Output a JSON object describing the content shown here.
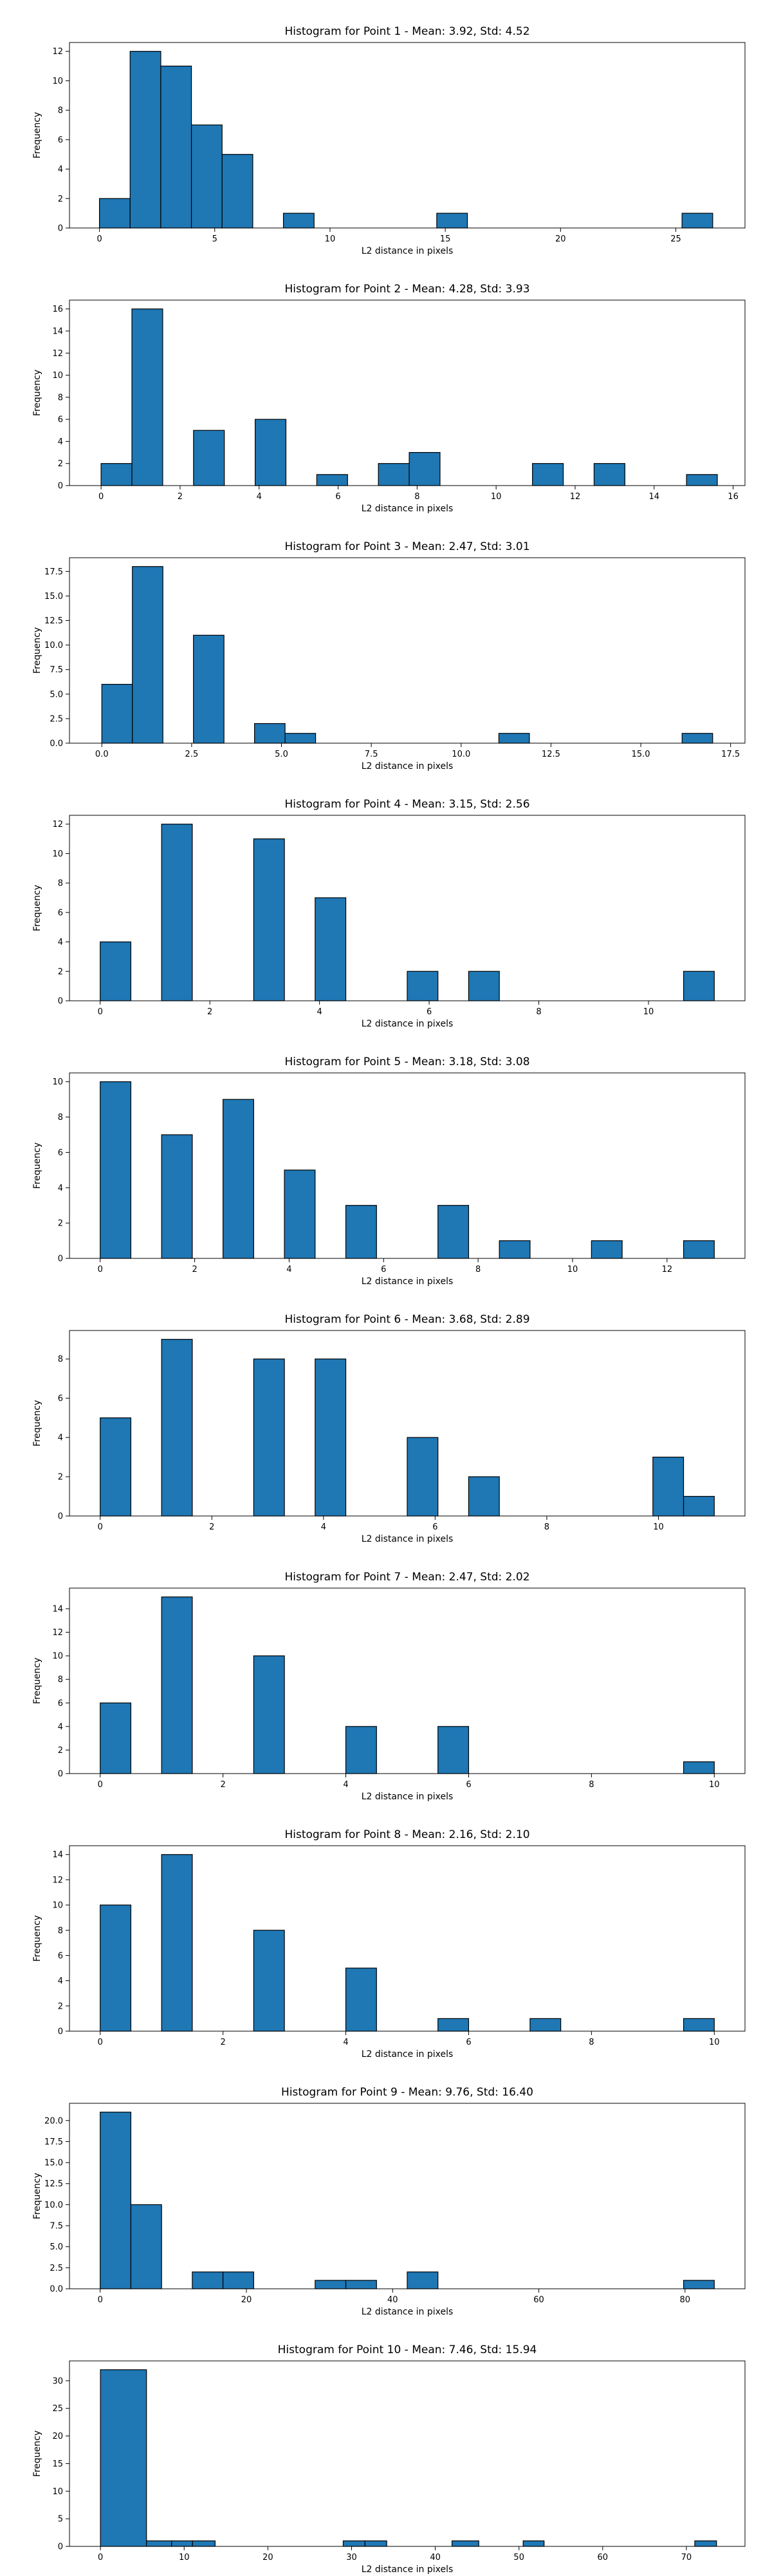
{
  "chart_data": [
    {
      "type": "bar",
      "title": "Histogram for Point 1 - Mean: 3.92, Std: 4.52",
      "xlabel": "L2 distance in pixels",
      "ylabel": "Frequency",
      "xlim": [
        -1.3,
        28.0
      ],
      "ylim": [
        0,
        12.6
      ],
      "xticks": [
        0,
        5,
        10,
        15,
        20,
        25
      ],
      "xtick_labels": [
        "0",
        "5",
        "10",
        "15",
        "20",
        "25"
      ],
      "yticks": [
        0,
        2,
        4,
        6,
        8,
        10,
        12
      ],
      "ytick_labels": [
        "0",
        "2",
        "4",
        "6",
        "8",
        "10",
        "12"
      ],
      "bars": [
        {
          "x0": 0.0,
          "x1": 1.33,
          "value": 2
        },
        {
          "x0": 1.33,
          "x1": 2.66,
          "value": 12
        },
        {
          "x0": 2.66,
          "x1": 3.99,
          "value": 11
        },
        {
          "x0": 3.99,
          "x1": 5.32,
          "value": 7
        },
        {
          "x0": 5.32,
          "x1": 6.65,
          "value": 5
        },
        {
          "x0": 7.98,
          "x1": 9.31,
          "value": 1
        },
        {
          "x0": 14.63,
          "x1": 15.96,
          "value": 1
        },
        {
          "x0": 25.27,
          "x1": 26.6,
          "value": 1
        }
      ]
    },
    {
      "type": "bar",
      "title": "Histogram for Point 2 - Mean: 4.28, Std: 3.93",
      "xlabel": "L2 distance in pixels",
      "ylabel": "Frequency",
      "xlim": [
        -0.8,
        16.3
      ],
      "ylim": [
        0,
        16.8
      ],
      "xticks": [
        0,
        2,
        4,
        6,
        8,
        10,
        12,
        14,
        16
      ],
      "xtick_labels": [
        "0",
        "2",
        "4",
        "6",
        "8",
        "10",
        "12",
        "14",
        "16"
      ],
      "yticks": [
        0,
        2,
        4,
        6,
        8,
        10,
        12,
        14,
        16
      ],
      "ytick_labels": [
        "0",
        "2",
        "4",
        "6",
        "8",
        "10",
        "12",
        "14",
        "16"
      ],
      "bars": [
        {
          "x0": 0.0,
          "x1": 0.78,
          "value": 2
        },
        {
          "x0": 0.78,
          "x1": 1.56,
          "value": 16
        },
        {
          "x0": 2.34,
          "x1": 3.12,
          "value": 5
        },
        {
          "x0": 3.9,
          "x1": 4.68,
          "value": 6
        },
        {
          "x0": 5.46,
          "x1": 6.24,
          "value": 1
        },
        {
          "x0": 7.02,
          "x1": 7.8,
          "value": 2
        },
        {
          "x0": 7.8,
          "x1": 8.58,
          "value": 3
        },
        {
          "x0": 10.92,
          "x1": 11.7,
          "value": 2
        },
        {
          "x0": 12.48,
          "x1": 13.26,
          "value": 2
        },
        {
          "x0": 14.82,
          "x1": 15.6,
          "value": 1
        }
      ]
    },
    {
      "type": "bar",
      "title": "Histogram for Point 3 - Mean: 2.47, Std: 3.01",
      "xlabel": "L2 distance in pixels",
      "ylabel": "Frequency",
      "xlim": [
        -0.9,
        17.9
      ],
      "ylim": [
        0,
        18.9
      ],
      "xticks": [
        0,
        2.5,
        5,
        7.5,
        10,
        12.5,
        15,
        17.5
      ],
      "xtick_labels": [
        "0.0",
        "2.5",
        "5.0",
        "7.5",
        "10.0",
        "12.5",
        "15.0",
        "17.5"
      ],
      "yticks": [
        0,
        2.5,
        5,
        7.5,
        10,
        12.5,
        15,
        17.5
      ],
      "ytick_labels": [
        "0.0",
        "2.5",
        "5.0",
        "7.5",
        "10.0",
        "12.5",
        "15.0",
        "17.5"
      ],
      "bars": [
        {
          "x0": 0.0,
          "x1": 0.85,
          "value": 6
        },
        {
          "x0": 0.85,
          "x1": 1.7,
          "value": 18
        },
        {
          "x0": 2.55,
          "x1": 3.4,
          "value": 11
        },
        {
          "x0": 4.25,
          "x1": 5.1,
          "value": 2
        },
        {
          "x0": 5.1,
          "x1": 5.95,
          "value": 1
        },
        {
          "x0": 11.05,
          "x1": 11.9,
          "value": 1
        },
        {
          "x0": 16.15,
          "x1": 17.0,
          "value": 1
        }
      ]
    },
    {
      "type": "bar",
      "title": "Histogram for Point 4 - Mean: 3.15, Std: 2.56",
      "xlabel": "L2 distance in pixels",
      "ylabel": "Frequency",
      "xlim": [
        -0.56,
        11.76
      ],
      "ylim": [
        0,
        12.6
      ],
      "xticks": [
        0,
        2,
        4,
        6,
        8,
        10
      ],
      "xtick_labels": [
        "0",
        "2",
        "4",
        "6",
        "8",
        "10"
      ],
      "yticks": [
        0,
        2,
        4,
        6,
        8,
        10,
        12
      ],
      "ytick_labels": [
        "0",
        "2",
        "4",
        "6",
        "8",
        "10",
        "12"
      ],
      "bars": [
        {
          "x0": 0.0,
          "x1": 0.56,
          "value": 4
        },
        {
          "x0": 1.12,
          "x1": 1.68,
          "value": 12
        },
        {
          "x0": 2.8,
          "x1": 3.36,
          "value": 11
        },
        {
          "x0": 3.92,
          "x1": 4.48,
          "value": 7
        },
        {
          "x0": 5.6,
          "x1": 6.16,
          "value": 2
        },
        {
          "x0": 6.72,
          "x1": 7.28,
          "value": 2
        },
        {
          "x0": 10.64,
          "x1": 11.2,
          "value": 2
        }
      ]
    },
    {
      "type": "bar",
      "title": "Histogram for Point 5 - Mean: 3.18, Std: 3.08",
      "xlabel": "L2 distance in pixels",
      "ylabel": "Frequency",
      "xlim": [
        -0.65,
        13.65
      ],
      "ylim": [
        0,
        10.5
      ],
      "xticks": [
        0,
        2,
        4,
        6,
        8,
        10,
        12
      ],
      "xtick_labels": [
        "0",
        "2",
        "4",
        "6",
        "8",
        "10",
        "12"
      ],
      "yticks": [
        0,
        2,
        4,
        6,
        8,
        10
      ],
      "ytick_labels": [
        "0",
        "2",
        "4",
        "6",
        "8",
        "10"
      ],
      "bars": [
        {
          "x0": 0.0,
          "x1": 0.65,
          "value": 10
        },
        {
          "x0": 1.3,
          "x1": 1.95,
          "value": 7
        },
        {
          "x0": 2.6,
          "x1": 3.25,
          "value": 9
        },
        {
          "x0": 3.9,
          "x1": 4.55,
          "value": 5
        },
        {
          "x0": 5.2,
          "x1": 5.85,
          "value": 3
        },
        {
          "x0": 7.15,
          "x1": 7.8,
          "value": 3
        },
        {
          "x0": 8.45,
          "x1": 9.1,
          "value": 1
        },
        {
          "x0": 10.4,
          "x1": 11.05,
          "value": 1
        },
        {
          "x0": 12.35,
          "x1": 13.0,
          "value": 1
        }
      ]
    },
    {
      "type": "bar",
      "title": "Histogram for Point 6 - Mean: 3.68, Std: 2.89",
      "xlabel": "L2 distance in pixels",
      "ylabel": "Frequency",
      "xlim": [
        -0.55,
        11.55
      ],
      "ylim": [
        0,
        9.45
      ],
      "xticks": [
        0,
        2,
        4,
        6,
        8,
        10
      ],
      "xtick_labels": [
        "0",
        "2",
        "4",
        "6",
        "8",
        "10"
      ],
      "yticks": [
        0,
        2,
        4,
        6,
        8
      ],
      "ytick_labels": [
        "0",
        "2",
        "4",
        "6",
        "8"
      ],
      "bars": [
        {
          "x0": 0.0,
          "x1": 0.55,
          "value": 5
        },
        {
          "x0": 1.1,
          "x1": 1.65,
          "value": 9
        },
        {
          "x0": 2.75,
          "x1": 3.3,
          "value": 8
        },
        {
          "x0": 3.85,
          "x1": 4.4,
          "value": 8
        },
        {
          "x0": 5.5,
          "x1": 6.05,
          "value": 4
        },
        {
          "x0": 6.6,
          "x1": 7.15,
          "value": 2
        },
        {
          "x0": 9.9,
          "x1": 10.45,
          "value": 3
        },
        {
          "x0": 10.45,
          "x1": 11.0,
          "value": 1
        }
      ]
    },
    {
      "type": "bar",
      "title": "Histogram for Point 7 - Mean: 2.47, Std: 2.02",
      "xlabel": "L2 distance in pixels",
      "ylabel": "Frequency",
      "xlim": [
        -0.5,
        10.5
      ],
      "ylim": [
        0,
        15.75
      ],
      "xticks": [
        0,
        2,
        4,
        6,
        8,
        10
      ],
      "xtick_labels": [
        "0",
        "2",
        "4",
        "6",
        "8",
        "10"
      ],
      "yticks": [
        0,
        2,
        4,
        6,
        8,
        10,
        12,
        14
      ],
      "ytick_labels": [
        "0",
        "2",
        "4",
        "6",
        "8",
        "10",
        "12",
        "14"
      ],
      "bars": [
        {
          "x0": 0.0,
          "x1": 0.5,
          "value": 6
        },
        {
          "x0": 1.0,
          "x1": 1.5,
          "value": 15
        },
        {
          "x0": 2.5,
          "x1": 3.0,
          "value": 10
        },
        {
          "x0": 4.0,
          "x1": 4.5,
          "value": 4
        },
        {
          "x0": 5.5,
          "x1": 6.0,
          "value": 4
        },
        {
          "x0": 9.5,
          "x1": 10.0,
          "value": 1
        }
      ]
    },
    {
      "type": "bar",
      "title": "Histogram for Point 8 - Mean: 2.16, Std: 2.10",
      "xlabel": "L2 distance in pixels",
      "ylabel": "Frequency",
      "xlim": [
        -0.5,
        10.5
      ],
      "ylim": [
        0,
        14.7
      ],
      "xticks": [
        0,
        2,
        4,
        6,
        8,
        10
      ],
      "xtick_labels": [
        "0",
        "2",
        "4",
        "6",
        "8",
        "10"
      ],
      "yticks": [
        0,
        2,
        4,
        6,
        8,
        10,
        12,
        14
      ],
      "ytick_labels": [
        "0",
        "2",
        "4",
        "6",
        "8",
        "10",
        "12",
        "14"
      ],
      "bars": [
        {
          "x0": 0.0,
          "x1": 0.5,
          "value": 10
        },
        {
          "x0": 1.0,
          "x1": 1.5,
          "value": 14
        },
        {
          "x0": 2.5,
          "x1": 3.0,
          "value": 8
        },
        {
          "x0": 4.0,
          "x1": 4.5,
          "value": 5
        },
        {
          "x0": 5.5,
          "x1": 6.0,
          "value": 1
        },
        {
          "x0": 7.0,
          "x1": 7.5,
          "value": 1
        },
        {
          "x0": 9.5,
          "x1": 10.0,
          "value": 1
        }
      ]
    },
    {
      "type": "bar",
      "title": "Histogram for Point 9 - Mean: 9.76, Std: 16.40",
      "xlabel": "L2 distance in pixels",
      "ylabel": "Frequency",
      "xlim": [
        -4.2,
        88.2
      ],
      "ylim": [
        0,
        22.05
      ],
      "xticks": [
        0,
        20,
        40,
        60,
        80
      ],
      "xtick_labels": [
        "0",
        "20",
        "40",
        "60",
        "80"
      ],
      "yticks": [
        0,
        2.5,
        5,
        7.5,
        10,
        12.5,
        15,
        17.5,
        20
      ],
      "ytick_labels": [
        "0.0",
        "2.5",
        "5.0",
        "7.5",
        "10.0",
        "12.5",
        "15.0",
        "17.5",
        "20.0"
      ],
      "bars": [
        {
          "x0": 0.0,
          "x1": 4.2,
          "value": 21
        },
        {
          "x0": 4.2,
          "x1": 8.4,
          "value": 10
        },
        {
          "x0": 12.6,
          "x1": 16.8,
          "value": 2
        },
        {
          "x0": 16.8,
          "x1": 21.0,
          "value": 2
        },
        {
          "x0": 29.4,
          "x1": 33.6,
          "value": 1
        },
        {
          "x0": 33.6,
          "x1": 37.8,
          "value": 1
        },
        {
          "x0": 42.0,
          "x1": 46.2,
          "value": 2
        },
        {
          "x0": 79.8,
          "x1": 84.0,
          "value": 1
        }
      ]
    },
    {
      "type": "bar",
      "title": "Histogram for Point 10 - Mean: 7.46, Std: 15.94",
      "xlabel": "L2 distance in pixels",
      "ylabel": "Frequency",
      "xlim": [
        -3.7,
        77.0
      ],
      "ylim": [
        0,
        33.6
      ],
      "xticks": [
        0,
        10,
        20,
        30,
        40,
        50,
        60,
        70
      ],
      "xtick_labels": [
        "0",
        "10",
        "20",
        "30",
        "40",
        "50",
        "60",
        "70"
      ],
      "yticks": [
        0,
        5,
        10,
        15,
        20,
        25,
        30
      ],
      "ytick_labels": [
        "0",
        "5",
        "10",
        "15",
        "20",
        "25",
        "30"
      ],
      "bars": [
        {
          "x0": 0.0,
          "x1": 5.5,
          "value": 32
        },
        {
          "x0": 5.5,
          "x1": 8.5,
          "value": 1
        },
        {
          "x0": 8.5,
          "x1": 11.0,
          "value": 1
        },
        {
          "x0": 11.0,
          "x1": 13.7,
          "value": 1
        },
        {
          "x0": 29.0,
          "x1": 31.6,
          "value": 1
        },
        {
          "x0": 31.6,
          "x1": 34.2,
          "value": 1
        },
        {
          "x0": 42.0,
          "x1": 45.2,
          "value": 1
        },
        {
          "x0": 50.5,
          "x1": 53.0,
          "value": 1
        },
        {
          "x0": 71.0,
          "x1": 73.6,
          "value": 1
        }
      ]
    }
  ],
  "colors": {
    "bar_fill": "#1f77b4",
    "bar_edge": "#000000",
    "axis": "#000000",
    "background": "#ffffff"
  }
}
